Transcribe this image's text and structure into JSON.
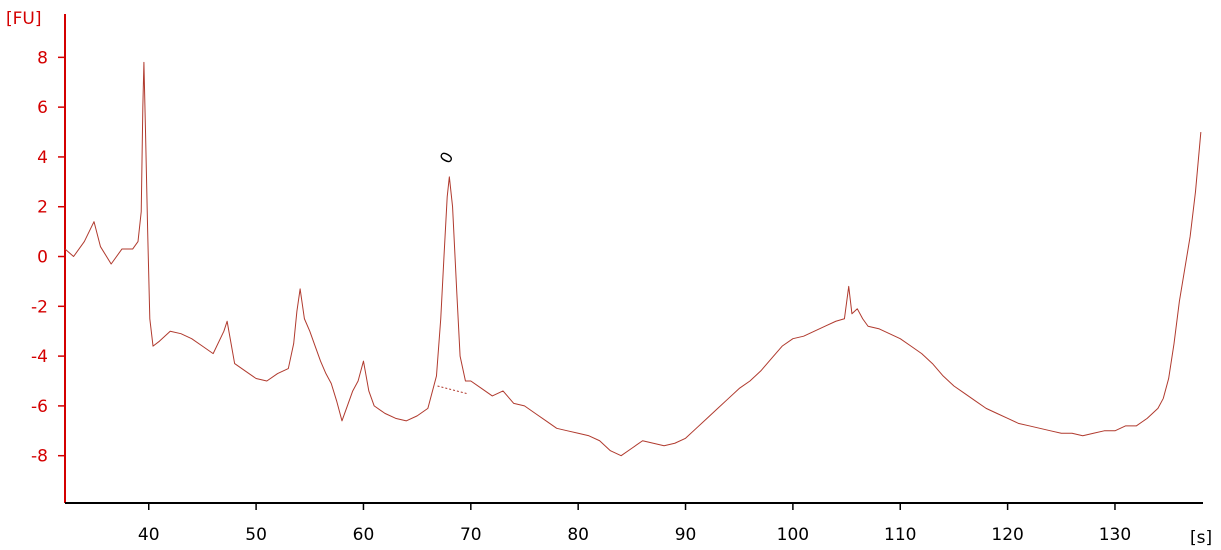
{
  "colors": {
    "y_axis": "#d40000",
    "x_axis": "#000000",
    "trace": "#b03a2e",
    "baseline": "#b03a2e",
    "peak_label": "#000000"
  },
  "chart_data": {
    "type": "line",
    "title": "",
    "xlabel": "[s]",
    "ylabel": "[FU]",
    "xlim": [
      32.2,
      138.2
    ],
    "ylim": [
      -9.9,
      9.5
    ],
    "x_ticks": [
      40,
      50,
      60,
      70,
      80,
      90,
      100,
      110,
      120,
      130
    ],
    "y_ticks": [
      -8,
      -6,
      -4,
      -2,
      0,
      2,
      4,
      6,
      8
    ],
    "grid": false,
    "legend": "none",
    "series": [
      {
        "x": [
          32.2,
          33.0,
          34.0,
          34.9,
          35.5,
          36.5,
          37.5,
          38.5,
          39.0,
          39.3,
          39.45,
          39.55,
          39.7,
          39.9,
          40.1,
          40.4,
          41.0,
          42.0,
          43.0,
          44.0,
          45.0,
          46.0,
          47.0,
          47.3,
          48.0,
          49.0,
          50.0,
          51.0,
          52.0,
          53.0,
          53.5,
          53.8,
          54.1,
          54.5,
          55.0,
          55.5,
          56.0,
          56.5,
          57.0,
          57.5,
          58.0,
          58.5,
          59.0,
          59.5,
          60.0,
          60.5,
          61.0,
          62.0,
          63.0,
          64.0,
          65.0,
          66.0,
          66.8,
          67.2,
          67.5,
          67.8,
          68.0,
          68.3,
          68.7,
          69.0,
          69.5,
          70.0,
          71.0,
          72.0,
          73.0,
          74.0,
          75.0,
          76.0,
          77.0,
          78.0,
          79.0,
          80.0,
          81.0,
          82.0,
          83.0,
          84.0,
          85.0,
          86.0,
          87.0,
          88.0,
          89.0,
          90.0,
          91.0,
          92.0,
          93.0,
          94.0,
          95.0,
          96.0,
          97.0,
          98.0,
          99.0,
          100.0,
          101.0,
          102.0,
          103.0,
          104.0,
          104.8,
          105.2,
          105.5,
          106.0,
          106.5,
          107.0,
          108.0,
          109.0,
          110.0,
          111.0,
          112.0,
          113.0,
          114.0,
          115.0,
          116.0,
          117.0,
          118.0,
          119.0,
          120.0,
          121.0,
          122.0,
          123.0,
          124.0,
          125.0,
          126.0,
          127.0,
          128.0,
          129.0,
          130.0,
          131.0,
          132.0,
          133.0,
          134.0,
          134.5,
          135.0,
          135.5,
          136.0,
          136.5,
          137.0,
          137.5,
          138.0
        ],
        "y": [
          0.3,
          0.0,
          0.6,
          1.4,
          0.4,
          -0.3,
          0.3,
          0.3,
          0.6,
          1.8,
          6.0,
          7.8,
          5.0,
          1.0,
          -2.5,
          -3.6,
          -3.4,
          -3.0,
          -3.1,
          -3.3,
          -3.6,
          -3.9,
          -3.0,
          -2.6,
          -4.3,
          -4.6,
          -4.9,
          -5.0,
          -4.7,
          -4.5,
          -3.5,
          -2.2,
          -1.3,
          -2.5,
          -3.0,
          -3.6,
          -4.2,
          -4.7,
          -5.1,
          -5.8,
          -6.6,
          -6.0,
          -5.4,
          -5.0,
          -4.2,
          -5.4,
          -6.0,
          -6.3,
          -6.5,
          -6.6,
          -6.4,
          -6.1,
          -4.8,
          -2.5,
          0.0,
          2.4,
          3.2,
          2.0,
          -1.5,
          -4.0,
          -5.0,
          -5.0,
          -5.3,
          -5.6,
          -5.4,
          -5.9,
          -6.0,
          -6.3,
          -6.6,
          -6.9,
          -7.0,
          -7.1,
          -7.2,
          -7.4,
          -7.8,
          -8.0,
          -7.7,
          -7.4,
          -7.5,
          -7.6,
          -7.5,
          -7.3,
          -6.9,
          -6.5,
          -6.1,
          -5.7,
          -5.3,
          -5.0,
          -4.6,
          -4.1,
          -3.6,
          -3.3,
          -3.2,
          -3.0,
          -2.8,
          -2.6,
          -2.5,
          -1.2,
          -2.3,
          -2.1,
          -2.5,
          -2.8,
          -2.9,
          -3.1,
          -3.3,
          -3.6,
          -3.9,
          -4.3,
          -4.8,
          -5.2,
          -5.5,
          -5.8,
          -6.1,
          -6.3,
          -6.5,
          -6.7,
          -6.8,
          -6.9,
          -7.0,
          -7.1,
          -7.1,
          -7.2,
          -7.1,
          -7.0,
          -7.0,
          -6.8,
          -6.8,
          -6.5,
          -6.1,
          -5.7,
          -4.9,
          -3.5,
          -1.8,
          -0.5,
          0.8,
          2.6,
          5.0
        ]
      }
    ],
    "peaks": [
      {
        "label": "0",
        "x": 68.0,
        "y": 3.3,
        "baseline_from": [
          66.9,
          -5.2
        ],
        "baseline_to": [
          69.6,
          -5.5
        ]
      }
    ]
  }
}
